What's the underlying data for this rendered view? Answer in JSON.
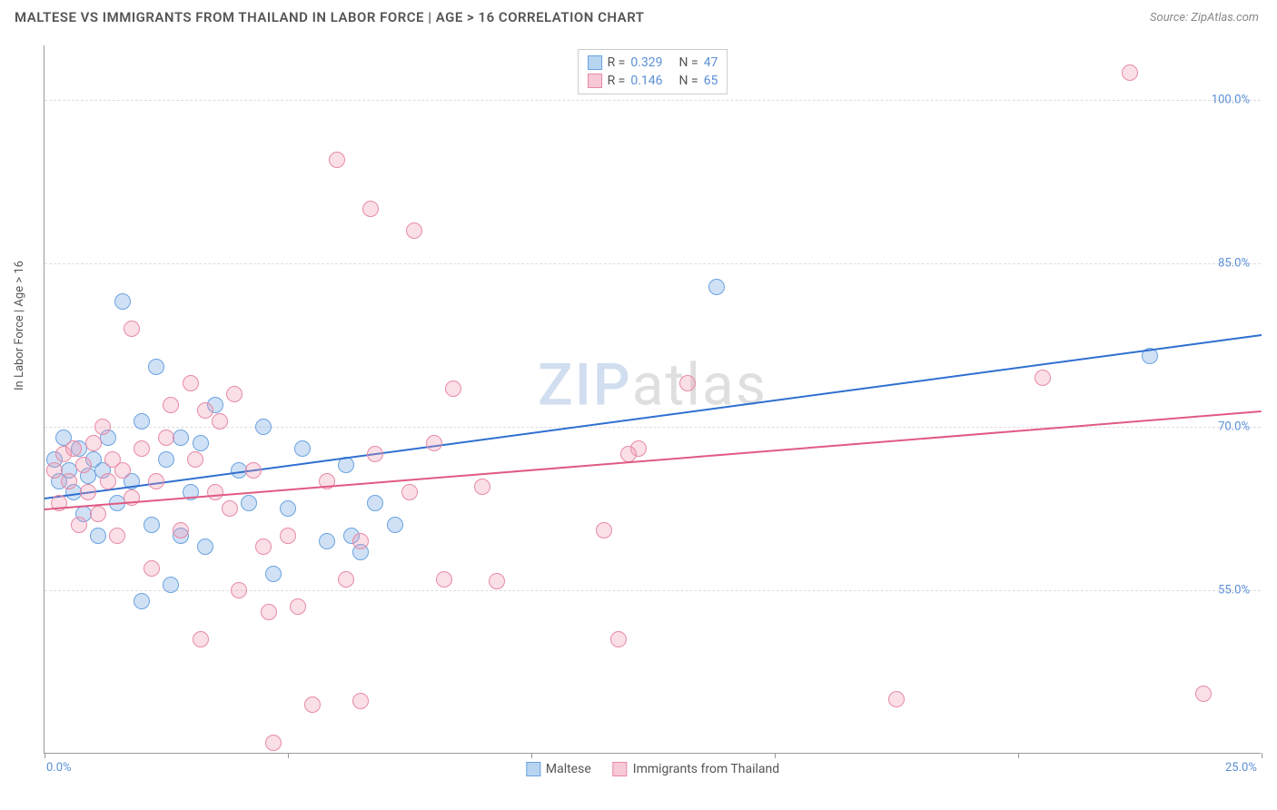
{
  "title": "MALTESE VS IMMIGRANTS FROM THAILAND IN LABOR FORCE | AGE > 16 CORRELATION CHART",
  "source": "Source: ZipAtlas.com",
  "ylabel": "In Labor Force | Age > 16",
  "watermark": {
    "part1": "ZIP",
    "part2": "atlas"
  },
  "chart": {
    "type": "scatter",
    "background_color": "#ffffff",
    "grid_color": "#dddddd",
    "axis_color": "#999999",
    "tick_label_color": "#5b8fd6",
    "ylabel_color": "#555555",
    "xlim": [
      0,
      25
    ],
    "ylim": [
      40,
      105
    ],
    "yticks": [
      55.0,
      70.0,
      85.0,
      100.0
    ],
    "ytick_labels": [
      "55.0%",
      "70.0%",
      "85.0%",
      "100.0%"
    ],
    "xticks": [
      0,
      5,
      10,
      15,
      20,
      25
    ],
    "xtick_labels_shown": {
      "0": "0.0%",
      "25": "25.0%"
    },
    "marker_radius": 9,
    "marker_stroke_width": 1,
    "trendline_width": 2
  },
  "series": [
    {
      "name": "Maltese",
      "fill_color": "rgba(120,170,230,0.35)",
      "stroke_color": "#6aa3e0",
      "swatch_fill": "#b7d4f0",
      "swatch_border": "#6aa3e0",
      "trend_color": "#2f6fd0",
      "R": "0.329",
      "N": "47",
      "trend": {
        "x1": 0,
        "y1": 63.5,
        "x2": 25,
        "y2": 78.5
      },
      "points": [
        [
          0.2,
          67
        ],
        [
          0.3,
          65
        ],
        [
          0.4,
          69
        ],
        [
          0.5,
          66
        ],
        [
          0.6,
          64
        ],
        [
          0.7,
          68
        ],
        [
          0.8,
          62
        ],
        [
          0.9,
          65.5
        ],
        [
          1.0,
          67
        ],
        [
          1.1,
          60
        ],
        [
          1.2,
          66
        ],
        [
          1.3,
          69
        ],
        [
          1.5,
          63
        ],
        [
          1.6,
          81.5
        ],
        [
          1.8,
          65
        ],
        [
          2.0,
          70.5
        ],
        [
          2.0,
          54
        ],
        [
          2.2,
          61
        ],
        [
          2.3,
          75.5
        ],
        [
          2.5,
          67
        ],
        [
          2.6,
          55.5
        ],
        [
          2.8,
          69
        ],
        [
          2.8,
          60
        ],
        [
          3.0,
          64
        ],
        [
          3.2,
          68.5
        ],
        [
          3.3,
          59
        ],
        [
          3.5,
          72
        ],
        [
          4.0,
          66
        ],
        [
          4.2,
          63
        ],
        [
          4.5,
          70
        ],
        [
          4.7,
          56.5
        ],
        [
          5.0,
          62.5
        ],
        [
          5.3,
          68
        ],
        [
          5.8,
          59.5
        ],
        [
          6.2,
          66.5
        ],
        [
          6.3,
          60
        ],
        [
          6.5,
          58.5
        ],
        [
          6.8,
          63
        ],
        [
          7.2,
          61
        ],
        [
          13.8,
          82.8
        ],
        [
          22.7,
          76.5
        ]
      ]
    },
    {
      "name": "Immigrants from Thailand",
      "fill_color": "rgba(240,150,175,0.3)",
      "stroke_color": "#e88aa5",
      "swatch_fill": "#f7c9d6",
      "swatch_border": "#e88aa5",
      "trend_color": "#e05a82",
      "R": "0.146",
      "N": "65",
      "trend": {
        "x1": 0,
        "y1": 62.5,
        "x2": 25,
        "y2": 71.5
      },
      "points": [
        [
          0.2,
          66
        ],
        [
          0.3,
          63
        ],
        [
          0.4,
          67.5
        ],
        [
          0.5,
          65
        ],
        [
          0.6,
          68
        ],
        [
          0.7,
          61
        ],
        [
          0.8,
          66.5
        ],
        [
          0.9,
          64
        ],
        [
          1.0,
          68.5
        ],
        [
          1.1,
          62
        ],
        [
          1.2,
          70
        ],
        [
          1.3,
          65
        ],
        [
          1.4,
          67
        ],
        [
          1.5,
          60
        ],
        [
          1.6,
          66
        ],
        [
          1.8,
          63.5
        ],
        [
          1.8,
          79
        ],
        [
          2.0,
          68
        ],
        [
          2.2,
          57
        ],
        [
          2.3,
          65
        ],
        [
          2.5,
          69
        ],
        [
          2.6,
          72
        ],
        [
          2.8,
          60.5
        ],
        [
          3.0,
          74
        ],
        [
          3.1,
          67
        ],
        [
          3.2,
          50.5
        ],
        [
          3.3,
          71.5
        ],
        [
          3.5,
          64
        ],
        [
          3.6,
          70.5
        ],
        [
          3.8,
          62.5
        ],
        [
          3.9,
          73
        ],
        [
          4.0,
          55
        ],
        [
          4.3,
          66
        ],
        [
          4.5,
          59
        ],
        [
          4.6,
          53
        ],
        [
          4.7,
          41
        ],
        [
          5.0,
          60
        ],
        [
          5.2,
          53.5
        ],
        [
          5.5,
          44.5
        ],
        [
          5.8,
          65
        ],
        [
          6.0,
          94.5
        ],
        [
          6.2,
          56
        ],
        [
          6.5,
          59.5
        ],
        [
          6.5,
          44.8
        ],
        [
          6.7,
          90
        ],
        [
          6.8,
          67.5
        ],
        [
          7.5,
          64
        ],
        [
          7.6,
          88
        ],
        [
          8.0,
          68.5
        ],
        [
          8.2,
          56
        ],
        [
          8.4,
          73.5
        ],
        [
          9.0,
          64.5
        ],
        [
          9.3,
          55.8
        ],
        [
          11.5,
          60.5
        ],
        [
          11.8,
          50.5
        ],
        [
          12.2,
          68
        ],
        [
          12.0,
          67.5
        ],
        [
          13.2,
          74
        ],
        [
          17.5,
          45
        ],
        [
          20.5,
          74.5
        ],
        [
          22.3,
          102.5
        ],
        [
          23.8,
          45.5
        ]
      ]
    }
  ],
  "legend_labels": {
    "R_prefix": "R =",
    "N_prefix": "N ="
  }
}
